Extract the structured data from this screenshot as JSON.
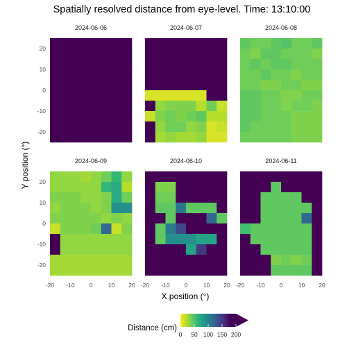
{
  "chart_data": {
    "type": "heatmap",
    "title": "Spatially resolved distance from eye-level. Time: 13:10:00",
    "xlabel": "X position (°)",
    "ylabel": "Y position (°)",
    "xlim": [
      -20,
      20
    ],
    "ylim": [
      -25,
      25
    ],
    "x_ticks": [
      "-20",
      "-10",
      "0",
      "10",
      "20"
    ],
    "y_ticks": [
      "20",
      "10",
      "0",
      "-10",
      "-20"
    ],
    "x_centers": [
      -17.5,
      -12.5,
      -7.5,
      -2.5,
      2.5,
      7.5,
      12.5,
      17.5
    ],
    "y_centers": [
      22.5,
      17.5,
      12.5,
      7.5,
      2.5,
      -2.5,
      -7.5,
      -12.5,
      -17.5,
      -22.5
    ],
    "grid": true,
    "legend": {
      "title": "Distance (cm)",
      "position": "bottom",
      "colorscale": "viridis (reversed)",
      "range": [
        0,
        200
      ],
      "ticks": [
        "0",
        "50",
        "100",
        "150",
        "200"
      ]
    },
    "panels": [
      {
        "label": "2024-06-06",
        "values": [
          [
            200,
            200,
            200,
            200,
            200,
            200,
            200,
            200
          ],
          [
            200,
            200,
            200,
            200,
            200,
            200,
            200,
            200
          ],
          [
            200,
            200,
            200,
            200,
            200,
            200,
            200,
            200
          ],
          [
            200,
            200,
            200,
            200,
            200,
            200,
            200,
            200
          ],
          [
            200,
            200,
            200,
            200,
            200,
            200,
            200,
            200
          ],
          [
            200,
            200,
            200,
            200,
            200,
            200,
            200,
            200
          ],
          [
            200,
            200,
            200,
            200,
            200,
            200,
            200,
            200
          ],
          [
            200,
            200,
            200,
            200,
            200,
            200,
            200,
            200
          ],
          [
            200,
            200,
            200,
            200,
            200,
            200,
            200,
            200
          ],
          [
            200,
            200,
            200,
            200,
            200,
            200,
            200,
            200
          ]
        ]
      },
      {
        "label": "2024-06-07",
        "values": [
          [
            200,
            200,
            200,
            200,
            200,
            200,
            200,
            200
          ],
          [
            200,
            200,
            200,
            200,
            200,
            200,
            200,
            200
          ],
          [
            200,
            200,
            200,
            200,
            200,
            200,
            200,
            200
          ],
          [
            200,
            200,
            200,
            200,
            200,
            200,
            200,
            200
          ],
          [
            200,
            200,
            200,
            200,
            200,
            200,
            200,
            200
          ],
          [
            10,
            10,
            10,
            10,
            10,
            10,
            200,
            200
          ],
          [
            200,
            30,
            35,
            35,
            35,
            20,
            40,
            15
          ],
          [
            15,
            35,
            40,
            35,
            40,
            45,
            20,
            20
          ],
          [
            200,
            30,
            40,
            40,
            30,
            35,
            10,
            15
          ],
          [
            200,
            25,
            30,
            25,
            25,
            30,
            10,
            10
          ]
        ]
      },
      {
        "label": "2024-06-08",
        "values": [
          [
            45,
            40,
            40,
            45,
            50,
            40,
            40,
            45
          ],
          [
            40,
            35,
            45,
            45,
            40,
            40,
            40,
            35
          ],
          [
            40,
            45,
            40,
            45,
            45,
            40,
            40,
            40
          ],
          [
            40,
            40,
            45,
            40,
            40,
            35,
            40,
            40
          ],
          [
            40,
            40,
            35,
            35,
            40,
            40,
            35,
            35
          ],
          [
            45,
            45,
            40,
            40,
            35,
            35,
            40,
            40
          ],
          [
            45,
            45,
            40,
            40,
            35,
            40,
            40,
            35
          ],
          [
            45,
            45,
            40,
            40,
            40,
            35,
            35,
            35
          ],
          [
            45,
            40,
            40,
            40,
            40,
            35,
            35,
            35
          ],
          [
            40,
            40,
            40,
            40,
            40,
            35,
            35,
            35
          ]
        ]
      },
      {
        "label": "2024-06-09",
        "values": [
          [
            30,
            30,
            30,
            25,
            30,
            40,
            60,
            30
          ],
          [
            30,
            30,
            30,
            30,
            30,
            60,
            70,
            20
          ],
          [
            35,
            35,
            35,
            30,
            30,
            35,
            70,
            40
          ],
          [
            30,
            35,
            35,
            35,
            30,
            35,
            90,
            90
          ],
          [
            35,
            35,
            35,
            35,
            35,
            30,
            35,
            30
          ],
          [
            15,
            35,
            35,
            35,
            40,
            120,
            15,
            35
          ],
          [
            200,
            30,
            30,
            30,
            30,
            30,
            30,
            30
          ],
          [
            200,
            30,
            30,
            30,
            30,
            30,
            30,
            30
          ],
          [
            25,
            25,
            25,
            25,
            25,
            25,
            25,
            25
          ],
          [
            25,
            25,
            25,
            25,
            25,
            25,
            25,
            25
          ]
        ]
      },
      {
        "label": "2024-06-10",
        "values": [
          [
            200,
            200,
            200,
            200,
            200,
            200,
            200,
            200
          ],
          [
            200,
            35,
            35,
            200,
            200,
            200,
            200,
            200
          ],
          [
            200,
            40,
            40,
            200,
            200,
            200,
            200,
            200
          ],
          [
            200,
            45,
            45,
            110,
            45,
            45,
            45,
            200
          ],
          [
            200,
            200,
            45,
            180,
            200,
            200,
            120,
            45
          ],
          [
            200,
            45,
            105,
            140,
            200,
            200,
            200,
            200
          ],
          [
            200,
            45,
            90,
            90,
            90,
            75,
            75,
            200
          ],
          [
            200,
            200,
            200,
            200,
            75,
            150,
            200,
            200
          ],
          [
            200,
            200,
            200,
            200,
            200,
            200,
            200,
            200
          ],
          [
            200,
            200,
            200,
            200,
            200,
            200,
            200,
            200
          ]
        ]
      },
      {
        "label": "2024-06-11",
        "values": [
          [
            200,
            200,
            200,
            200,
            200,
            200,
            200,
            200
          ],
          [
            200,
            200,
            200,
            45,
            200,
            200,
            200,
            200
          ],
          [
            200,
            200,
            45,
            45,
            45,
            45,
            200,
            200
          ],
          [
            200,
            200,
            45,
            45,
            45,
            45,
            45,
            200
          ],
          [
            200,
            200,
            45,
            45,
            45,
            45,
            120,
            200
          ],
          [
            55,
            45,
            45,
            45,
            45,
            45,
            45,
            200
          ],
          [
            200,
            45,
            45,
            45,
            45,
            45,
            45,
            200
          ],
          [
            200,
            200,
            45,
            45,
            45,
            45,
            45,
            200
          ],
          [
            200,
            200,
            200,
            35,
            40,
            35,
            40,
            200
          ],
          [
            200,
            200,
            200,
            45,
            45,
            45,
            45,
            200
          ]
        ]
      }
    ]
  }
}
